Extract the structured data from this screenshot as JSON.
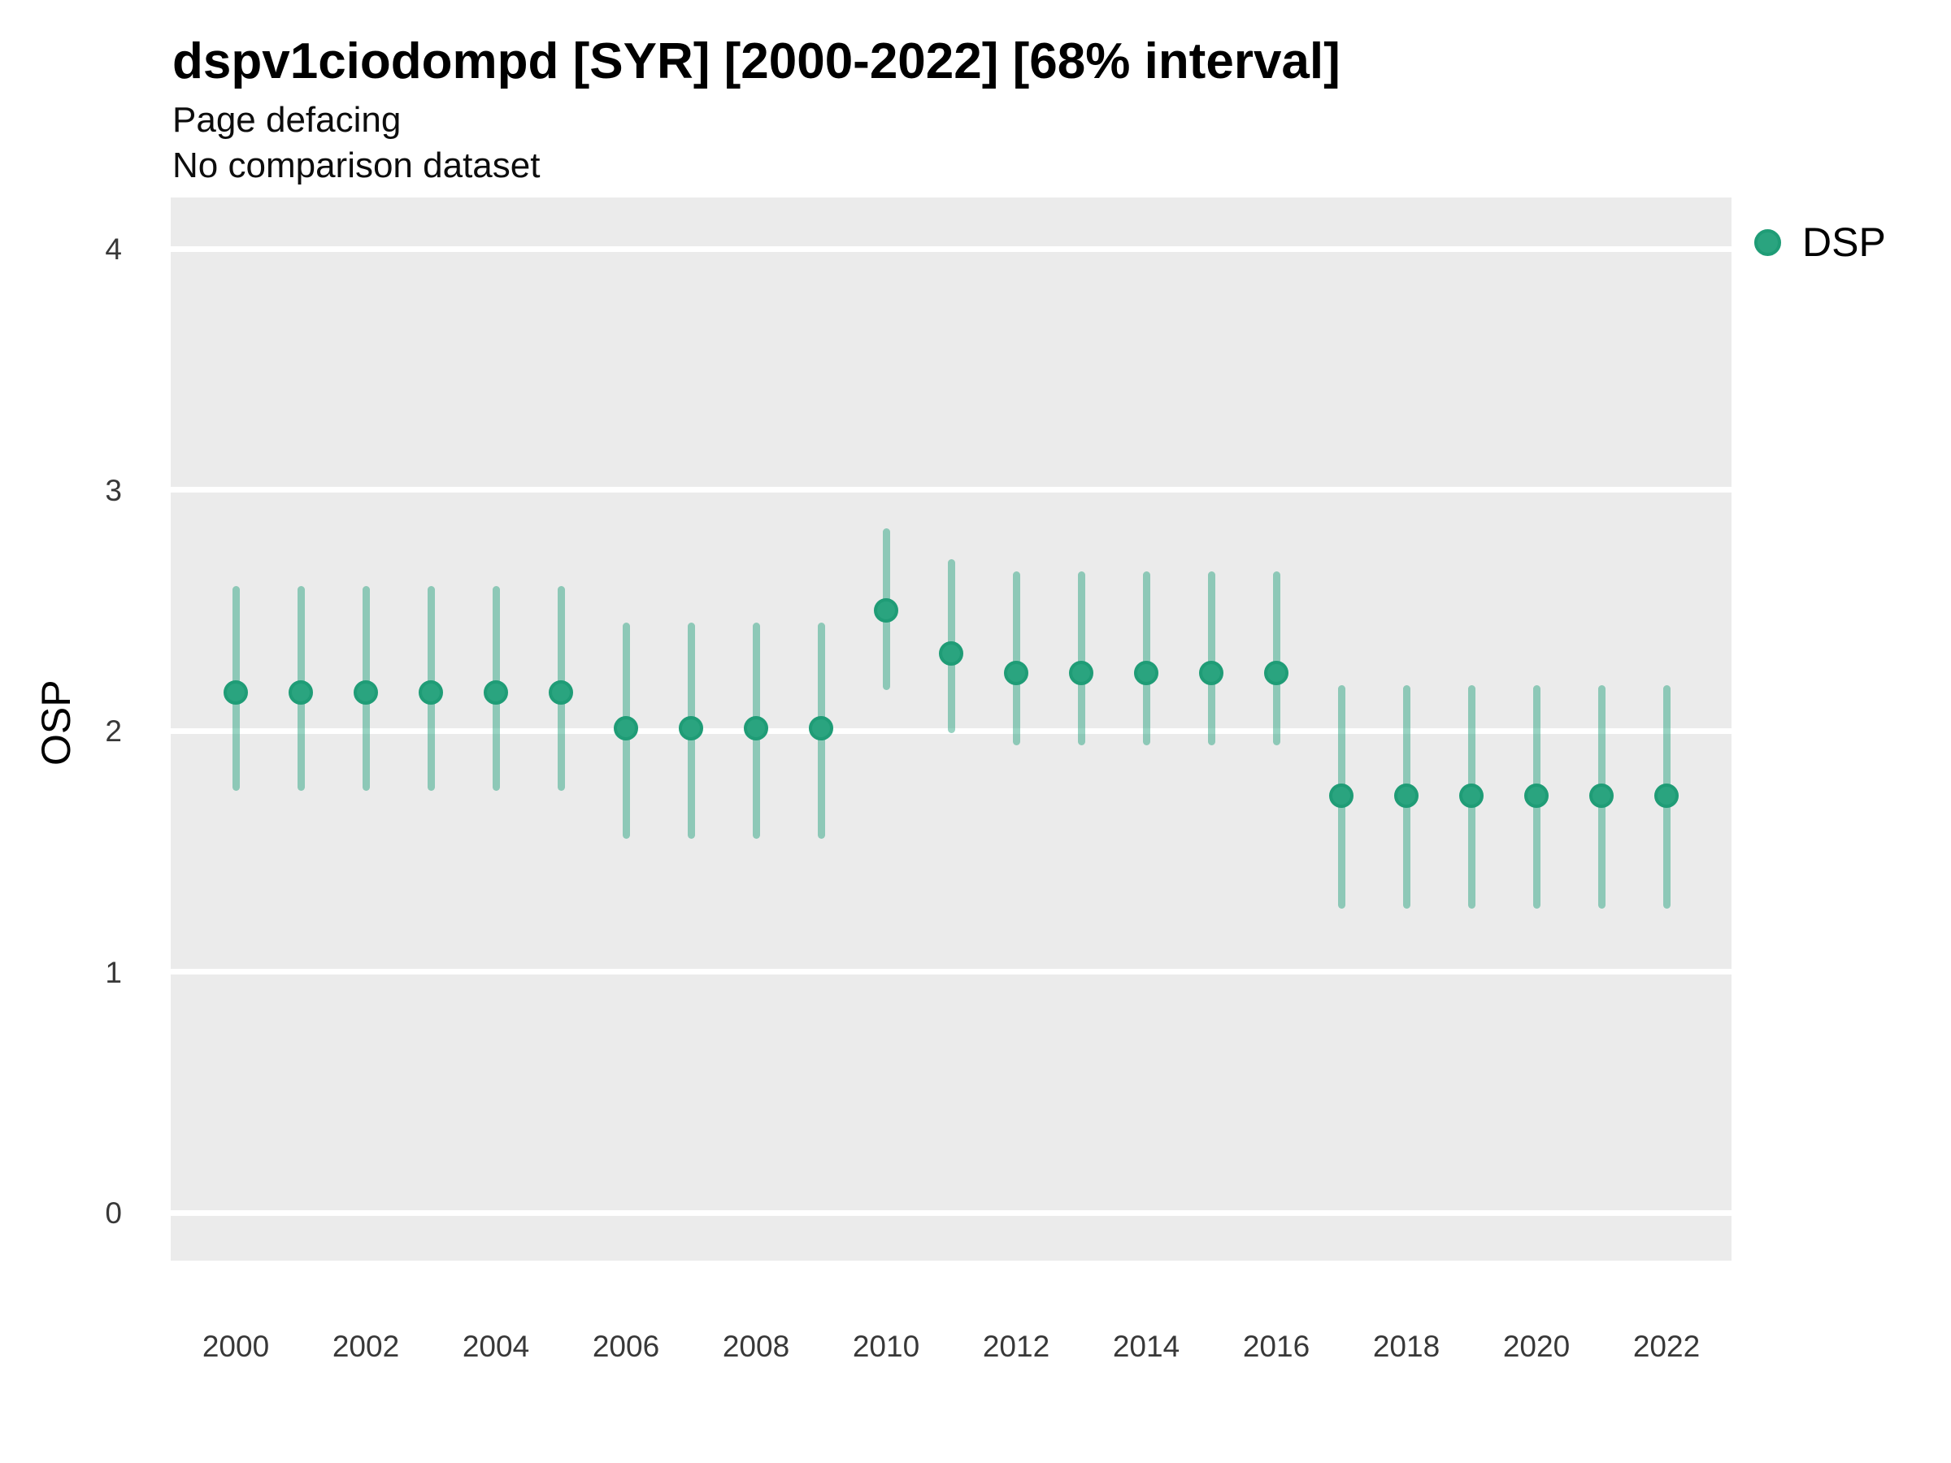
{
  "title": "dspv1ciodompd [SYR] [2000-2022] [68% interval]",
  "subtitle_line1": "Page defacing",
  "subtitle_line2": "No comparison dataset",
  "legend": {
    "label": "DSP"
  },
  "colors": {
    "panel_background": "#EBEBEB",
    "gridline": "#FFFFFF",
    "interval_bar": "rgba(27,158,119,0.45)",
    "point_fill": "#2AA47F",
    "point_stroke": "#1F9C76",
    "legend_dot_fill": "#2AA47F",
    "legend_dot_stroke": "#1F9C76",
    "axis_text": "#383838",
    "title_text": "#000000"
  },
  "chart_data": {
    "type": "scatter",
    "title": "dspv1ciodompd [SYR] [2000-2022] [68% interval]",
    "subtitle": [
      "Page defacing",
      "No comparison dataset"
    ],
    "xlabel": "",
    "ylabel": "OSP",
    "interval": "68%",
    "legend_position": "right-top",
    "grid": "horizontal-major-only",
    "x": [
      2000,
      2001,
      2002,
      2003,
      2004,
      2005,
      2006,
      2007,
      2008,
      2009,
      2010,
      2011,
      2012,
      2013,
      2014,
      2015,
      2016,
      2017,
      2018,
      2019,
      2020,
      2021,
      2022
    ],
    "series": [
      {
        "name": "DSP",
        "values": [
          2.16,
          2.16,
          2.16,
          2.16,
          2.16,
          2.16,
          2.01,
          2.01,
          2.01,
          2.01,
          2.5,
          2.32,
          2.24,
          2.24,
          2.24,
          2.24,
          2.24,
          1.73,
          1.73,
          1.73,
          1.73,
          1.73,
          1.73
        ],
        "ci_low": [
          1.75,
          1.75,
          1.75,
          1.75,
          1.75,
          1.75,
          1.55,
          1.55,
          1.55,
          1.55,
          2.17,
          1.99,
          1.94,
          1.94,
          1.94,
          1.94,
          1.94,
          1.26,
          1.26,
          1.26,
          1.26,
          1.26,
          1.26
        ],
        "ci_high": [
          2.6,
          2.6,
          2.6,
          2.6,
          2.6,
          2.6,
          2.45,
          2.45,
          2.45,
          2.45,
          2.84,
          2.71,
          2.66,
          2.66,
          2.66,
          2.66,
          2.66,
          2.19,
          2.19,
          2.19,
          2.19,
          2.19,
          2.19
        ]
      }
    ],
    "x_ticks": [
      2000,
      2002,
      2004,
      2006,
      2008,
      2010,
      2012,
      2014,
      2016,
      2018,
      2020,
      2022
    ],
    "y_ticks": [
      0,
      1,
      2,
      3,
      4
    ],
    "ylim": [
      -0.2,
      4.2
    ]
  }
}
